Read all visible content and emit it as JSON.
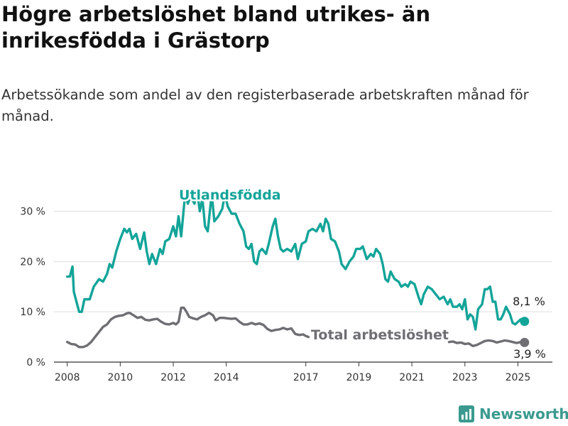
{
  "title": "Högre arbetslöshet bland utrikes- än inrikesfödda i Grästorp",
  "subtitle": "Arbetssökande som andel av den registerbaserade arbetskraften månad för månad.",
  "brand": "Newsworthy",
  "colors": {
    "foreign_born": "#13a499",
    "total": "#6e6e73",
    "grid": "#dddddd",
    "axis": "#333333"
  },
  "chart_data": {
    "type": "line",
    "x_unit": "decimal year",
    "xlim": [
      2007.5,
      2026.3
    ],
    "ylim": [
      0,
      36
    ],
    "x_ticks": [
      {
        "value": 2008,
        "label": "2008"
      },
      {
        "value": 2010,
        "label": "2010"
      },
      {
        "value": 2012,
        "label": "2012"
      },
      {
        "value": 2014,
        "label": "2014"
      },
      {
        "value": 2017,
        "label": "2017"
      },
      {
        "value": 2019,
        "label": "2019"
      },
      {
        "value": 2021,
        "label": "2021"
      },
      {
        "value": 2023,
        "label": "2023"
      },
      {
        "value": 2025,
        "label": "2025"
      }
    ],
    "y_ticks": [
      {
        "value": 0,
        "label": "0 %"
      },
      {
        "value": 10,
        "label": "10 %"
      },
      {
        "value": 20,
        "label": "20 %"
      },
      {
        "value": 30,
        "label": "30 %"
      }
    ],
    "grid": true,
    "series": [
      {
        "name": "Utlandsfödda",
        "color": "#13a499",
        "last_label": "8,1 %",
        "points": [
          [
            2008.0,
            17.0
          ],
          [
            2008.1,
            17.0
          ],
          [
            2008.2,
            19.0
          ],
          [
            2008.25,
            14.0
          ],
          [
            2008.35,
            12.0
          ],
          [
            2008.45,
            10.0
          ],
          [
            2008.55,
            10.0
          ],
          [
            2008.65,
            12.5
          ],
          [
            2008.85,
            12.5
          ],
          [
            2009.0,
            15.0
          ],
          [
            2009.2,
            16.5
          ],
          [
            2009.35,
            16.0
          ],
          [
            2009.5,
            17.5
          ],
          [
            2009.6,
            19.5
          ],
          [
            2009.7,
            18.8
          ],
          [
            2009.85,
            22.0
          ],
          [
            2010.0,
            24.5
          ],
          [
            2010.15,
            26.5
          ],
          [
            2010.25,
            25.8
          ],
          [
            2010.35,
            26.5
          ],
          [
            2010.45,
            24.5
          ],
          [
            2010.6,
            25.5
          ],
          [
            2010.75,
            22.5
          ],
          [
            2010.9,
            25.8
          ],
          [
            2011.0,
            22.0
          ],
          [
            2011.1,
            19.5
          ],
          [
            2011.2,
            21.5
          ],
          [
            2011.35,
            19.5
          ],
          [
            2011.5,
            22.5
          ],
          [
            2011.6,
            21.5
          ],
          [
            2011.7,
            24.0
          ],
          [
            2011.85,
            24.5
          ],
          [
            2012.0,
            27.0
          ],
          [
            2012.1,
            25.0
          ],
          [
            2012.2,
            29.0
          ],
          [
            2012.3,
            25.0
          ],
          [
            2012.45,
            33.5
          ],
          [
            2012.55,
            31.5
          ],
          [
            2012.65,
            33.0
          ],
          [
            2012.8,
            31.5
          ],
          [
            2012.9,
            34.0
          ],
          [
            2013.0,
            30.0
          ],
          [
            2013.1,
            32.5
          ],
          [
            2013.2,
            27.0
          ],
          [
            2013.3,
            26.0
          ],
          [
            2013.45,
            33.5
          ],
          [
            2013.55,
            28.0
          ],
          [
            2013.7,
            29.0
          ],
          [
            2013.85,
            30.5
          ],
          [
            2013.95,
            33.5
          ],
          [
            2014.05,
            31.0
          ],
          [
            2014.2,
            29.5
          ],
          [
            2014.35,
            29.5
          ],
          [
            2014.5,
            27.5
          ],
          [
            2014.65,
            26.0
          ],
          [
            2014.75,
            23.0
          ],
          [
            2014.85,
            22.5
          ],
          [
            2014.95,
            23.5
          ],
          [
            2015.05,
            20.0
          ],
          [
            2015.15,
            19.5
          ],
          [
            2015.25,
            22.0
          ],
          [
            2015.35,
            22.5
          ],
          [
            2015.5,
            21.5
          ],
          [
            2015.6,
            23.5
          ],
          [
            2015.75,
            27.0
          ],
          [
            2015.85,
            28.5
          ],
          [
            2015.95,
            25.0
          ],
          [
            2016.05,
            22.5
          ],
          [
            2016.15,
            22.0
          ],
          [
            2016.3,
            22.5
          ],
          [
            2016.45,
            22.0
          ],
          [
            2016.6,
            23.5
          ],
          [
            2016.7,
            20.5
          ],
          [
            2016.85,
            23.5
          ],
          [
            2017.0,
            24.0
          ],
          [
            2017.1,
            26.0
          ],
          [
            2017.25,
            26.5
          ],
          [
            2017.4,
            26.0
          ],
          [
            2017.55,
            27.5
          ],
          [
            2017.65,
            26.0
          ],
          [
            2017.75,
            28.5
          ],
          [
            2017.85,
            27.5
          ],
          [
            2017.95,
            24.5
          ],
          [
            2018.1,
            24.0
          ],
          [
            2018.25,
            22.0
          ],
          [
            2018.35,
            19.5
          ],
          [
            2018.5,
            18.5
          ],
          [
            2018.65,
            20.0
          ],
          [
            2018.8,
            21.0
          ],
          [
            2018.9,
            22.5
          ],
          [
            2019.05,
            22.5
          ],
          [
            2019.15,
            23.0
          ],
          [
            2019.3,
            20.5
          ],
          [
            2019.45,
            21.5
          ],
          [
            2019.55,
            21.0
          ],
          [
            2019.65,
            22.5
          ],
          [
            2019.8,
            21.5
          ],
          [
            2019.9,
            19.5
          ],
          [
            2020.0,
            16.5
          ],
          [
            2020.1,
            16.0
          ],
          [
            2020.2,
            18.0
          ],
          [
            2020.35,
            16.5
          ],
          [
            2020.5,
            16.0
          ],
          [
            2020.6,
            15.0
          ],
          [
            2020.75,
            15.5
          ],
          [
            2020.85,
            15.0
          ],
          [
            2020.95,
            16.0
          ],
          [
            2021.1,
            15.5
          ],
          [
            2021.25,
            13.0
          ],
          [
            2021.35,
            11.5
          ],
          [
            2021.45,
            13.5
          ],
          [
            2021.6,
            15.0
          ],
          [
            2021.75,
            14.5
          ],
          [
            2021.9,
            13.5
          ],
          [
            2022.05,
            12.5
          ],
          [
            2022.2,
            13.0
          ],
          [
            2022.35,
            11.5
          ],
          [
            2022.45,
            12.5
          ],
          [
            2022.55,
            11.0
          ],
          [
            2022.7,
            11.0
          ],
          [
            2022.8,
            11.5
          ],
          [
            2022.9,
            10.5
          ],
          [
            2023.0,
            12.5
          ],
          [
            2023.1,
            8.5
          ],
          [
            2023.2,
            9.5
          ],
          [
            2023.3,
            9.0
          ],
          [
            2023.4,
            6.5
          ],
          [
            2023.5,
            10.5
          ],
          [
            2023.65,
            11.5
          ],
          [
            2023.75,
            14.5
          ],
          [
            2023.85,
            14.5
          ],
          [
            2023.95,
            15.0
          ],
          [
            2024.05,
            12.0
          ],
          [
            2024.15,
            12.0
          ],
          [
            2024.25,
            8.5
          ],
          [
            2024.35,
            8.5
          ],
          [
            2024.45,
            9.5
          ],
          [
            2024.55,
            11.0
          ],
          [
            2024.7,
            9.5
          ],
          [
            2024.8,
            7.8
          ],
          [
            2024.9,
            7.5
          ],
          [
            2025.0,
            8.0
          ],
          [
            2025.1,
            8.5
          ],
          [
            2025.25,
            8.1
          ]
        ]
      },
      {
        "name": "Total arbetslöshet",
        "color": "#6e6e73",
        "last_label": "3,9 %",
        "points": [
          [
            2008.0,
            4.0
          ],
          [
            2008.15,
            3.6
          ],
          [
            2008.3,
            3.5
          ],
          [
            2008.45,
            3.0
          ],
          [
            2008.6,
            3.0
          ],
          [
            2008.75,
            3.3
          ],
          [
            2008.9,
            4.0
          ],
          [
            2009.05,
            5.0
          ],
          [
            2009.2,
            6.0
          ],
          [
            2009.35,
            7.0
          ],
          [
            2009.5,
            7.5
          ],
          [
            2009.65,
            8.5
          ],
          [
            2009.8,
            9.0
          ],
          [
            2009.95,
            9.2
          ],
          [
            2010.1,
            9.3
          ],
          [
            2010.25,
            9.7
          ],
          [
            2010.35,
            9.8
          ],
          [
            2010.5,
            9.3
          ],
          [
            2010.65,
            8.8
          ],
          [
            2010.8,
            9.0
          ],
          [
            2010.95,
            8.4
          ],
          [
            2011.1,
            8.3
          ],
          [
            2011.25,
            8.5
          ],
          [
            2011.4,
            8.6
          ],
          [
            2011.55,
            8.0
          ],
          [
            2011.7,
            7.6
          ],
          [
            2011.85,
            7.5
          ],
          [
            2012.0,
            7.8
          ],
          [
            2012.1,
            7.5
          ],
          [
            2012.2,
            8.0
          ],
          [
            2012.3,
            10.8
          ],
          [
            2012.4,
            10.8
          ],
          [
            2012.5,
            10.0
          ],
          [
            2012.6,
            9.0
          ],
          [
            2012.75,
            8.7
          ],
          [
            2012.9,
            8.5
          ],
          [
            2013.05,
            9.0
          ],
          [
            2013.2,
            9.3
          ],
          [
            2013.35,
            9.8
          ],
          [
            2013.5,
            9.3
          ],
          [
            2013.6,
            8.3
          ],
          [
            2013.75,
            8.8
          ],
          [
            2013.9,
            8.8
          ],
          [
            2014.05,
            8.7
          ],
          [
            2014.2,
            8.6
          ],
          [
            2014.35,
            8.7
          ],
          [
            2014.5,
            8.0
          ],
          [
            2014.65,
            7.5
          ],
          [
            2014.8,
            7.5
          ],
          [
            2014.95,
            7.8
          ],
          [
            2015.1,
            7.5
          ],
          [
            2015.25,
            7.7
          ],
          [
            2015.4,
            7.4
          ],
          [
            2015.55,
            6.6
          ],
          [
            2015.7,
            6.2
          ],
          [
            2015.85,
            6.4
          ],
          [
            2016.0,
            6.5
          ],
          [
            2016.15,
            6.8
          ],
          [
            2016.3,
            6.5
          ],
          [
            2016.45,
            6.7
          ],
          [
            2016.6,
            5.6
          ],
          [
            2016.75,
            5.4
          ],
          [
            2016.9,
            5.5
          ],
          [
            2017.0,
            5.2
          ],
          [
            2017.1,
            5.0
          ]
        ],
        "points_after_label": [
          [
            2022.4,
            4.0
          ],
          [
            2022.55,
            4.1
          ],
          [
            2022.7,
            3.8
          ],
          [
            2022.85,
            3.9
          ],
          [
            2023.0,
            3.6
          ],
          [
            2023.15,
            3.7
          ],
          [
            2023.3,
            3.2
          ],
          [
            2023.45,
            3.4
          ],
          [
            2023.6,
            3.8
          ],
          [
            2023.75,
            4.2
          ],
          [
            2023.9,
            4.3
          ],
          [
            2024.05,
            4.2
          ],
          [
            2024.2,
            3.9
          ],
          [
            2024.35,
            4.1
          ],
          [
            2024.5,
            4.3
          ],
          [
            2024.65,
            4.2
          ],
          [
            2024.8,
            4.0
          ],
          [
            2024.95,
            3.8
          ],
          [
            2025.1,
            4.0
          ],
          [
            2025.25,
            3.9
          ]
        ]
      }
    ]
  }
}
